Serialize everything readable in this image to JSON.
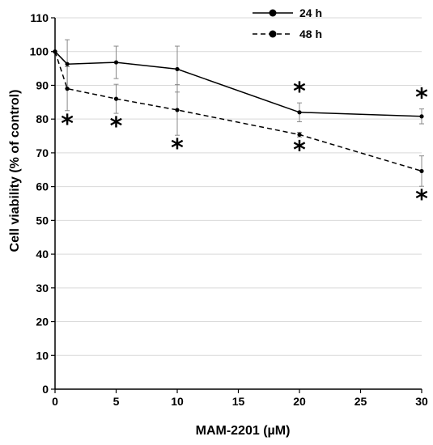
{
  "chart_data": {
    "type": "line",
    "xlabel": "MAM-2201 (µM)",
    "ylabel": "Cell viability (% of control)",
    "xlim": [
      0,
      30
    ],
    "ylim": [
      0,
      110
    ],
    "x_ticks": [
      0,
      5,
      10,
      15,
      20,
      25,
      30
    ],
    "y_ticks": [
      0,
      10,
      20,
      30,
      40,
      50,
      60,
      70,
      80,
      90,
      100,
      110
    ],
    "grid": "horizontal",
    "legend_position": "top-right",
    "significance_marker": "*",
    "series": [
      {
        "name": "24 h",
        "line_style": "solid",
        "x": [
          0,
          1,
          5,
          10,
          20,
          30
        ],
        "y": [
          100,
          96.3,
          96.8,
          94.8,
          82.0,
          80.8
        ],
        "error": [
          0,
          7.2,
          4.8,
          6.8,
          2.8,
          2.2
        ],
        "significant": [
          false,
          false,
          false,
          false,
          true,
          true
        ]
      },
      {
        "name": "48 h",
        "line_style": "dashed",
        "x": [
          0,
          1,
          5,
          10,
          20,
          30
        ],
        "y": [
          100,
          89.0,
          86.0,
          82.7,
          75.4,
          64.6
        ],
        "error": [
          0,
          6.5,
          4.3,
          7.5,
          0.7,
          4.5
        ],
        "significant": [
          false,
          true,
          true,
          true,
          true,
          true
        ]
      }
    ]
  }
}
